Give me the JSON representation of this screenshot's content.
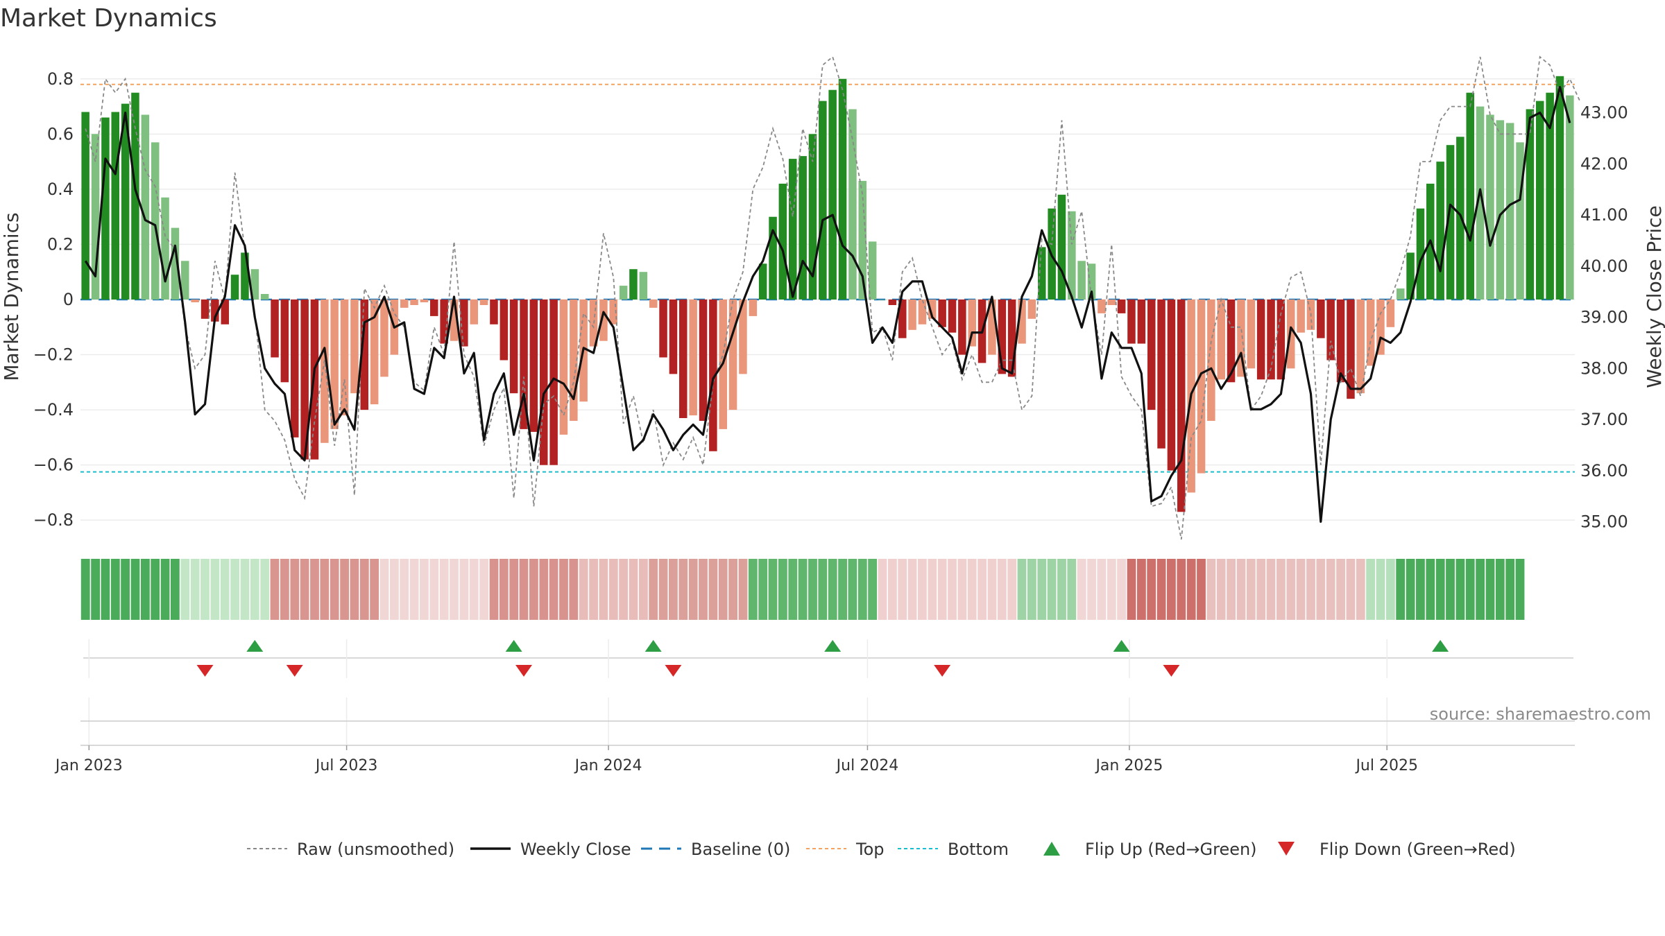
{
  "chart_data": {
    "type": "bar",
    "title": "Market Dynamics",
    "ylabel_left": "Market Dynamics",
    "ylabel_right": "Weekly Close Price",
    "ylim_left": [
      -0.88,
      0.9
    ],
    "ylim_right": [
      34.6,
      44.2
    ],
    "yticks_left": [
      0.8,
      0.6,
      0.4,
      0.2,
      0,
      -0.2,
      -0.4,
      -0.6,
      -0.8
    ],
    "ytick_labels_left": [
      "0.8",
      "0.6",
      "0.4",
      "0.2",
      "0",
      "−0.2",
      "−0.4",
      "−0.6",
      "−0.8"
    ],
    "yticks_right": [
      43,
      42,
      41,
      40,
      39,
      38,
      37,
      36,
      35
    ],
    "ytick_labels_right": [
      "43.00",
      "42.00",
      "41.00",
      "40.00",
      "39.00",
      "38.00",
      "37.00",
      "36.00",
      "35.00"
    ],
    "x_start": "2022-12-26",
    "x_ticks": [
      {
        "date": "2023-01-01",
        "label": "Jan 2023"
      },
      {
        "date": "2023-07-01",
        "label": "Jul 2023"
      },
      {
        "date": "2024-01-01",
        "label": "Jan 2024"
      },
      {
        "date": "2024-07-01",
        "label": "Jul 2024"
      },
      {
        "date": "2025-01-01",
        "label": "Jan 2025"
      },
      {
        "date": "2025-07-01",
        "label": "Jul 2025"
      }
    ],
    "top_level": 0.78,
    "bottom_level": -0.625,
    "baseline": 0,
    "grid": true,
    "legend_position": "bottom",
    "colors": {
      "pos_strong": "#228b22",
      "pos_weak": "#7fbf7f",
      "neg_strong": "#b22222",
      "neg_weak": "#e9967a",
      "close": "#111111",
      "raw": "#888888",
      "baseline": "#1f77b4",
      "top": "#f4a460",
      "bottom": "#17becf",
      "flip_up": "#2e9e44",
      "flip_down": "#d62728"
    },
    "series": [
      {
        "name": "Market Dynamics",
        "values": [
          0.68,
          0.6,
          0.66,
          0.68,
          0.71,
          0.75,
          0.67,
          0.57,
          0.37,
          0.26,
          0.14,
          -0.01,
          -0.07,
          -0.08,
          -0.09,
          0.09,
          0.17,
          0.11,
          0.02,
          -0.21,
          -0.3,
          -0.5,
          -0.58,
          -0.58,
          -0.52,
          -0.47,
          -0.42,
          -0.34,
          -0.4,
          -0.38,
          -0.28,
          -0.2,
          -0.03,
          -0.02,
          -0.01,
          -0.06,
          -0.16,
          -0.15,
          -0.17,
          -0.09,
          -0.02,
          -0.09,
          -0.22,
          -0.34,
          -0.47,
          -0.48,
          -0.6,
          -0.6,
          -0.49,
          -0.44,
          -0.37,
          -0.17,
          -0.15,
          -0.09,
          0.05,
          0.11,
          0.1,
          -0.03,
          -0.21,
          -0.27,
          -0.43,
          -0.42,
          -0.44,
          -0.55,
          -0.47,
          -0.4,
          -0.27,
          -0.06,
          0.13,
          0.3,
          0.42,
          0.51,
          0.52,
          0.6,
          0.72,
          0.76,
          0.8,
          0.69,
          0.43,
          0.21,
          0.0,
          -0.02,
          -0.14,
          -0.11,
          -0.09,
          -0.07,
          -0.1,
          -0.12,
          -0.2,
          -0.17,
          -0.23,
          -0.2,
          -0.27,
          -0.28,
          -0.16,
          -0.07,
          0.19,
          0.33,
          0.38,
          0.32,
          0.14,
          0.13,
          -0.05,
          -0.02,
          -0.05,
          -0.16,
          -0.16,
          -0.4,
          -0.54,
          -0.62,
          -0.77,
          -0.7,
          -0.63,
          -0.44,
          -0.29,
          -0.3,
          -0.28,
          -0.25,
          -0.29,
          -0.29,
          -0.29,
          -0.25,
          -0.12,
          -0.11,
          -0.14,
          -0.22,
          -0.3,
          -0.36,
          -0.34,
          -0.24,
          -0.2,
          -0.1,
          0.04,
          0.17,
          0.33,
          0.42,
          0.5,
          0.56,
          0.59,
          0.75,
          0.7,
          0.67,
          0.65,
          0.64,
          0.57,
          0.69,
          0.72,
          0.75,
          0.81,
          0.74
        ]
      },
      {
        "name": "Weekly Close",
        "values": [
          40.1,
          39.8,
          42.1,
          41.8,
          43.0,
          41.5,
          40.9,
          40.8,
          39.7,
          40.4,
          38.9,
          37.1,
          37.3,
          39.0,
          39.4,
          40.8,
          40.4,
          39.0,
          38.0,
          37.7,
          37.5,
          36.4,
          36.2,
          38.0,
          38.4,
          36.9,
          37.2,
          36.8,
          38.9,
          39.0,
          39.4,
          38.8,
          38.9,
          37.6,
          37.5,
          38.4,
          38.2,
          39.4,
          37.9,
          38.3,
          36.6,
          37.5,
          37.9,
          36.7,
          37.5,
          36.2,
          37.5,
          37.8,
          37.7,
          37.4,
          38.4,
          38.3,
          39.1,
          38.8,
          37.6,
          36.4,
          36.6,
          37.1,
          36.8,
          36.4,
          36.7,
          36.9,
          36.7,
          37.8,
          38.1,
          38.7,
          39.3,
          39.8,
          40.1,
          40.7,
          40.3,
          39.4,
          40.1,
          39.8,
          40.9,
          41.0,
          40.4,
          40.2,
          39.8,
          38.5,
          38.8,
          38.5,
          39.5,
          39.7,
          39.7,
          39.0,
          38.8,
          38.6,
          37.9,
          38.7,
          38.7,
          39.4,
          38.0,
          37.9,
          39.4,
          39.8,
          40.7,
          40.2,
          39.9,
          39.4,
          38.8,
          39.5,
          37.8,
          38.7,
          38.4,
          38.4,
          37.9,
          35.4,
          35.5,
          35.9,
          36.2,
          37.5,
          37.9,
          38.0,
          37.6,
          37.9,
          38.3,
          37.2,
          37.2,
          37.3,
          37.5,
          38.8,
          38.5,
          37.5,
          35.0,
          37.0,
          37.9,
          37.6,
          37.6,
          37.8,
          38.6,
          38.5,
          38.7,
          39.3,
          40.1,
          40.5,
          39.9,
          41.2,
          41.0,
          40.5,
          41.5,
          40.4,
          41.0,
          41.2,
          41.3,
          42.9,
          43.0,
          42.7,
          43.5,
          42.8
        ]
      },
      {
        "name": "Raw (unsmoothed)",
        "values": [
          0.62,
          0.5,
          0.8,
          0.75,
          0.8,
          0.62,
          0.47,
          0.41,
          0.23,
          0.18,
          -0.1,
          -0.25,
          -0.2,
          0.14,
          0.0,
          0.46,
          0.18,
          -0.05,
          -0.4,
          -0.44,
          -0.51,
          -0.65,
          -0.72,
          -0.44,
          -0.22,
          -0.53,
          -0.29,
          -0.71,
          0.04,
          -0.03,
          0.05,
          -0.05,
          -0.1,
          -0.3,
          -0.33,
          -0.1,
          -0.2,
          0.21,
          -0.2,
          -0.28,
          -0.53,
          -0.4,
          -0.32,
          -0.72,
          -0.28,
          -0.75,
          -0.38,
          -0.35,
          -0.42,
          -0.3,
          -0.05,
          -0.1,
          0.24,
          0.08,
          -0.45,
          -0.35,
          -0.52,
          -0.4,
          -0.6,
          -0.52,
          -0.58,
          -0.5,
          -0.6,
          -0.3,
          -0.2,
          0.0,
          0.1,
          0.4,
          0.48,
          0.62,
          0.51,
          0.3,
          0.62,
          0.5,
          0.85,
          0.88,
          0.76,
          0.58,
          0.38,
          -0.12,
          -0.1,
          -0.22,
          0.1,
          0.15,
          0.0,
          -0.1,
          -0.2,
          -0.15,
          -0.29,
          -0.2,
          -0.3,
          -0.3,
          -0.22,
          -0.22,
          -0.4,
          -0.35,
          0.22,
          0.2,
          0.65,
          0.2,
          0.32,
          0.0,
          -0.2,
          0.2,
          -0.28,
          -0.35,
          -0.4,
          -0.75,
          -0.74,
          -0.68,
          -0.87,
          -0.5,
          -0.44,
          -0.15,
          0.0,
          -0.1,
          -0.1,
          -0.4,
          -0.35,
          -0.25,
          -0.05,
          0.08,
          0.1,
          -0.05,
          -0.6,
          -0.15,
          -0.3,
          -0.25,
          -0.35,
          -0.15,
          -0.05,
          0.0,
          0.1,
          0.23,
          0.5,
          0.5,
          0.65,
          0.7,
          0.7,
          0.7,
          0.88,
          0.67,
          0.6,
          0.6,
          0.6,
          0.6,
          0.88,
          0.85,
          0.75,
          0.8,
          0.72
        ]
      }
    ],
    "regime_strip": [
      {
        "from": 0,
        "to": 9,
        "color": "#4aab5a"
      },
      {
        "from": 10,
        "to": 18,
        "color": "#c3e6c7"
      },
      {
        "from": 19,
        "to": 29,
        "color": "#d99590"
      },
      {
        "from": 30,
        "to": 40,
        "color": "#f0d6d4"
      },
      {
        "from": 41,
        "to": 49,
        "color": "#d8938e"
      },
      {
        "from": 50,
        "to": 56,
        "color": "#e8bcb8"
      },
      {
        "from": 57,
        "to": 66,
        "color": "#dca09b"
      },
      {
        "from": 67,
        "to": 79,
        "color": "#5fb66c"
      },
      {
        "from": 80,
        "to": 93,
        "color": "#f0d0ce"
      },
      {
        "from": 94,
        "to": 99,
        "color": "#9ed3a6"
      },
      {
        "from": 100,
        "to": 104,
        "color": "#f0d6d4"
      },
      {
        "from": 105,
        "to": 112,
        "color": "#cd6f6a"
      },
      {
        "from": 113,
        "to": 128,
        "color": "#e8c0bd"
      },
      {
        "from": 129,
        "to": 131,
        "color": "#b6dfbc"
      },
      {
        "from": 132,
        "to": 144,
        "color": "#4aab5a"
      }
    ],
    "flip_up_weeks": [
      17,
      43,
      57,
      75,
      104,
      136
    ],
    "flip_down_weeks": [
      12,
      21,
      44,
      59,
      86,
      109
    ],
    "legend": [
      {
        "label": "Raw (unsmoothed)",
        "style": "raw"
      },
      {
        "label": "Weekly Close",
        "style": "close"
      },
      {
        "label": "Baseline (0)",
        "style": "baseline"
      },
      {
        "label": "Top",
        "style": "top"
      },
      {
        "label": "Bottom",
        "style": "bottom"
      },
      {
        "label": "Flip Up (Red→Green)",
        "style": "flip_up"
      },
      {
        "label": "Flip Down (Green→Red)",
        "style": "flip_down"
      }
    ],
    "source": "source: sharemaestro.com"
  }
}
